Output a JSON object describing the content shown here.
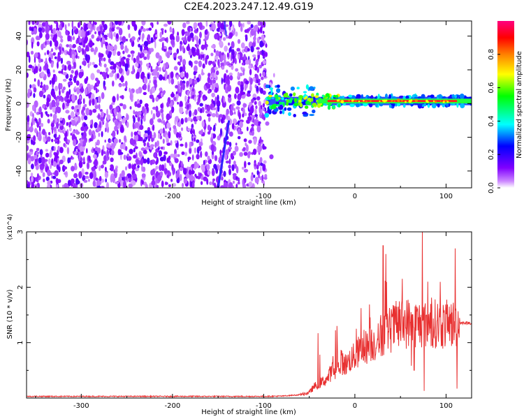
{
  "title": "C2E4.2023.247.12.49.G19",
  "chart_data": [
    {
      "type": "heatmap",
      "xlabel": "Height of straight line (km)",
      "ylabel": "Frequency (Hz)",
      "xlim": [
        -360,
        128
      ],
      "ylim": [
        -50,
        49
      ],
      "x_ticks": [
        -300,
        -200,
        -100,
        0,
        100
      ],
      "x_tick_labels": [
        "-300",
        "-200",
        "-100",
        "0",
        "100"
      ],
      "y_ticks": [
        -40,
        -20,
        0,
        20,
        40
      ],
      "y_tick_labels": [
        "-40",
        "-20",
        "0",
        "20",
        "40"
      ],
      "colorbar": {
        "label": "Normalized spectral amplitude",
        "range": [
          0.0,
          1.0
        ],
        "ticks": [
          0.0,
          0.2,
          0.4,
          0.6,
          0.8
        ],
        "tick_labels": [
          "0.0",
          "0.2",
          "0.4",
          "0.6",
          "0.8"
        ],
        "colors": [
          "#e8d4f8",
          "#8000ff",
          "#0000ff",
          "#00ffff",
          "#00ff00",
          "#ffff00",
          "#ff8000",
          "#ff0000",
          "#ff0080"
        ]
      },
      "regions": [
        {
          "name": "noise",
          "x_range": [
            -360,
            -97
          ],
          "freq_range": [
            -50,
            49
          ],
          "amplitude_range": [
            0.0,
            0.15
          ]
        },
        {
          "name": "signal",
          "x_range": [
            -97,
            128
          ],
          "center_freq": 1.5,
          "peak_amplitude": 0.9
        }
      ]
    },
    {
      "type": "line",
      "xlabel": "Height of straight line (km)",
      "ylabel": "SNR (10 * v/v)",
      "y_multiplier": "(x10^4)",
      "xlim": [
        -360,
        128
      ],
      "ylim": [
        0,
        30000
      ],
      "x_ticks": [
        -300,
        -200,
        -100,
        0,
        100
      ],
      "x_tick_labels": [
        "-300",
        "-200",
        "-100",
        "0",
        "100"
      ],
      "y_ticks": [
        10000,
        20000,
        30000
      ],
      "y_tick_labels": [
        "1",
        "2",
        "3"
      ],
      "color": "#e83030",
      "series": [
        {
          "x": [
            -360,
            -300,
            -200,
            -100,
            -80,
            -60,
            -50,
            -45,
            -40,
            -35,
            -30,
            -25,
            -20,
            -15,
            -10,
            -5,
            0,
            5,
            10,
            15,
            20,
            25,
            30,
            35,
            40,
            45,
            50,
            55,
            60,
            65,
            70,
            75,
            80,
            85,
            90,
            95,
            100,
            105,
            110,
            115,
            120,
            128
          ],
          "y": [
            300,
            300,
            300,
            300,
            350,
            600,
            1000,
            2000,
            2500,
            3000,
            3500,
            5000,
            4500,
            6500,
            6000,
            7000,
            7500,
            8500,
            9000,
            9500,
            10000,
            10000,
            11500,
            12000,
            12500,
            13000,
            13200,
            13500,
            13600,
            13500,
            13400,
            13400,
            13300,
            13400,
            13500,
            13200,
            13300,
            13400,
            13200,
            13500,
            13600,
            13500
          ],
          "spikes": [
            {
              "x": 31,
              "y": 27500
            },
            {
              "x": 34,
              "y": 26000
            },
            {
              "x": 74,
              "y": 30000
            },
            {
              "x": 80,
              "y": 21000
            },
            {
              "x": 110,
              "y": 27000
            },
            {
              "x": 76,
              "y": 1300
            },
            {
              "x": 65,
              "y": 5000
            },
            {
              "x": 112,
              "y": 1700
            }
          ]
        }
      ]
    }
  ]
}
